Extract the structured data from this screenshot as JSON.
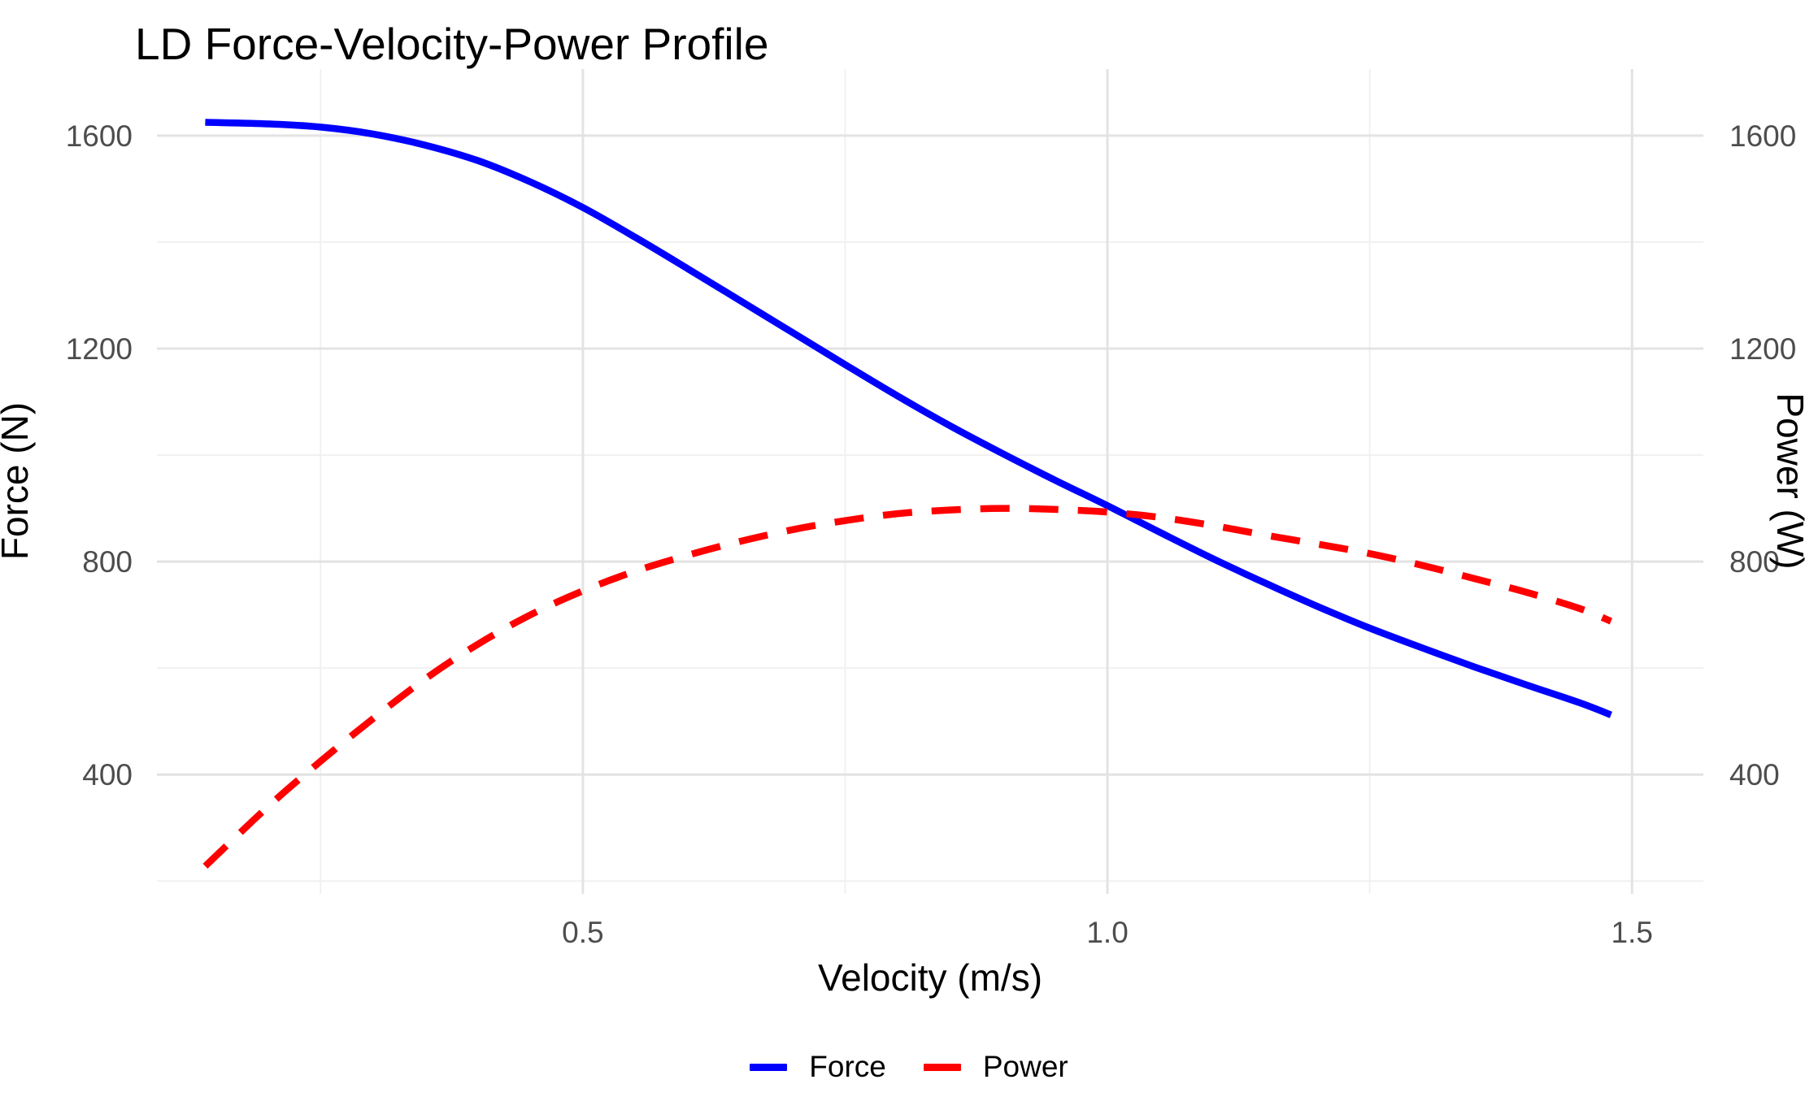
{
  "chart_data": {
    "type": "line",
    "title": "LD Force-Velocity-Power Profile",
    "xlabel": "Velocity (m/s)",
    "ylabel_left": "Force (N)",
    "ylabel_right": "Power (W)",
    "x_range": [
      0.094,
      1.568
    ],
    "y_range": [
      176,
      1725
    ],
    "grid": {
      "major_color": "#E3E3E3",
      "minor_color": "#F1F1F1",
      "background": "#FFFFFF"
    },
    "x_ticks": {
      "major": [
        0.5,
        1.0,
        1.5
      ],
      "labels": [
        "0.5",
        "1.0",
        "1.5"
      ],
      "minor": [
        0.25,
        0.75,
        1.25
      ]
    },
    "y_ticks": {
      "major": [
        400,
        800,
        1200,
        1600
      ],
      "labels": [
        "400",
        "800",
        "1200",
        "1600"
      ],
      "minor": [
        200,
        600,
        1000,
        1400
      ]
    },
    "series": [
      {
        "name": "Force",
        "axis": "left",
        "color": "#0000FF",
        "line_style": "solid",
        "x": [
          0.14,
          0.2,
          0.25,
          0.3,
          0.35,
          0.4,
          0.45,
          0.5,
          0.55,
          0.6,
          0.65,
          0.7,
          0.75,
          0.8,
          0.85,
          0.9,
          0.95,
          1.0,
          1.05,
          1.1,
          1.15,
          1.2,
          1.25,
          1.3,
          1.35,
          1.4,
          1.45,
          1.48
        ],
        "values": [
          1625,
          1622,
          1616,
          1603,
          1582,
          1553,
          1513,
          1465,
          1409,
          1350,
          1290,
          1230,
          1170,
          1111,
          1055,
          1003,
          953,
          905,
          855,
          806,
          760,
          716,
          675,
          638,
          602,
          568,
          535,
          512
        ]
      },
      {
        "name": "Power",
        "axis": "right",
        "color": "#FF0000",
        "line_style": "dashed",
        "x": [
          0.14,
          0.2,
          0.25,
          0.3,
          0.35,
          0.4,
          0.45,
          0.5,
          0.55,
          0.6,
          0.65,
          0.7,
          0.75,
          0.8,
          0.85,
          0.9,
          0.95,
          1.0,
          1.05,
          1.1,
          1.15,
          1.2,
          1.25,
          1.3,
          1.35,
          1.4,
          1.45,
          1.48
        ],
        "values": [
          228,
          340,
          425,
          505,
          580,
          645,
          700,
          745,
          782,
          812,
          838,
          860,
          877,
          890,
          897,
          900,
          898,
          893,
          883,
          868,
          850,
          833,
          815,
          793,
          768,
          742,
          712,
          688
        ]
      }
    ],
    "legend": {
      "position": "bottom",
      "entries": [
        {
          "label": "Force",
          "color": "#0000FF",
          "style": "solid"
        },
        {
          "label": "Power",
          "color": "#FF0000",
          "style": "dashed"
        }
      ]
    }
  }
}
